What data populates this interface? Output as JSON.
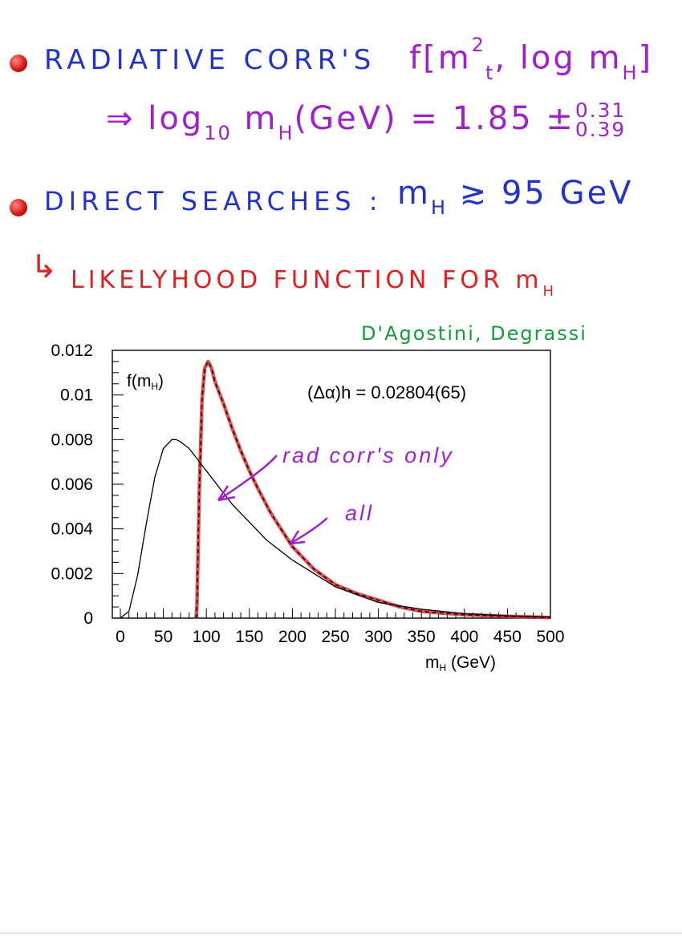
{
  "notes": {
    "radiative_label": "RADIATIVE CORR'S",
    "radiative_func": "f",
    "radiative_mt": "m",
    "radiative_mt_sup": "2",
    "radiative_mt_sub": "t",
    "radiative_log": ", log m",
    "radiative_log_sub": "H",
    "result_arrow": "⇒",
    "result_log": "log",
    "result_log_sub": "10",
    "result_m": "m",
    "result_m_sub": "H",
    "result_unit": "(GeV) = 1.85 ±",
    "result_up": "0.31",
    "result_down": "0.39",
    "direct_label": "DIRECT SEARCHES :",
    "direct_m": "m",
    "direct_m_sub": "H",
    "direct_bound": "≳ 95 GeV",
    "likelihood_arrow": "↳",
    "likelihood_label": "LIKELYHOOD FUNCTION FOR m",
    "likelihood_sub": "H",
    "authors": "D'Agostini, Degrassi",
    "annot_rad": "rad corr's only",
    "annot_all": "all"
  },
  "chart_data": {
    "type": "line",
    "ylabel": "f(mH)",
    "xlabel": "mH (GeV)",
    "annotation": "(Δα)h = 0.02804(65)",
    "xlim": [
      0,
      500
    ],
    "ylim": [
      0,
      0.012
    ],
    "x_ticks": [
      "0",
      "50",
      "100",
      "150",
      "200",
      "250",
      "300",
      "350",
      "400",
      "450",
      "500"
    ],
    "y_ticks": [
      "0",
      "0.002",
      "0.004",
      "0.006",
      "0.008",
      "0.01",
      "0.012"
    ],
    "series": [
      {
        "name": "rad corr's only",
        "style": "solid-black",
        "color": "#000000",
        "x": [
          0,
          10,
          20,
          30,
          40,
          50,
          60,
          65,
          70,
          80,
          90,
          100,
          110,
          120,
          130,
          140,
          150,
          170,
          200,
          250,
          300,
          350,
          400,
          450,
          500
        ],
        "y": [
          0,
          0.0003,
          0.0019,
          0.0042,
          0.0063,
          0.0076,
          0.008,
          0.008,
          0.0079,
          0.0076,
          0.0071,
          0.0066,
          0.0061,
          0.0056,
          0.0051,
          0.0047,
          0.0043,
          0.0035,
          0.0026,
          0.0014,
          0.0007,
          0.0004,
          0.0002,
          0.0001,
          5e-05
        ]
      },
      {
        "name": "all",
        "style": "dashed-black",
        "color": "#000000",
        "x": [
          88,
          89,
          92,
          95,
          98,
          102,
          106,
          110,
          120,
          130,
          140,
          150,
          160,
          175,
          190,
          200,
          225,
          250,
          275,
          300,
          325,
          350,
          400,
          450,
          500
        ],
        "y": [
          0,
          0.0005,
          0.006,
          0.0098,
          0.0112,
          0.0115,
          0.0112,
          0.0106,
          0.0096,
          0.0085,
          0.0075,
          0.0066,
          0.0058,
          0.0047,
          0.0038,
          0.0032,
          0.0022,
          0.0015,
          0.0011,
          0.0008,
          0.0005,
          0.0003,
          0.00015,
          8e-05,
          3e-05
        ]
      },
      {
        "name": "highlight",
        "style": "solid-red",
        "color": "#e03030",
        "x": [
          88,
          89,
          92,
          95,
          98,
          102,
          106,
          110,
          120,
          130,
          140,
          150,
          160,
          175,
          190,
          200,
          225,
          250,
          275,
          300,
          325,
          350,
          400,
          450,
          500
        ],
        "y": [
          0,
          0.0005,
          0.006,
          0.0098,
          0.0112,
          0.0115,
          0.0112,
          0.0106,
          0.0096,
          0.0085,
          0.0075,
          0.0066,
          0.0058,
          0.0047,
          0.0038,
          0.0032,
          0.0022,
          0.0015,
          0.0011,
          0.0008,
          0.0005,
          0.0003,
          0.00015,
          8e-05,
          3e-05
        ]
      }
    ]
  }
}
